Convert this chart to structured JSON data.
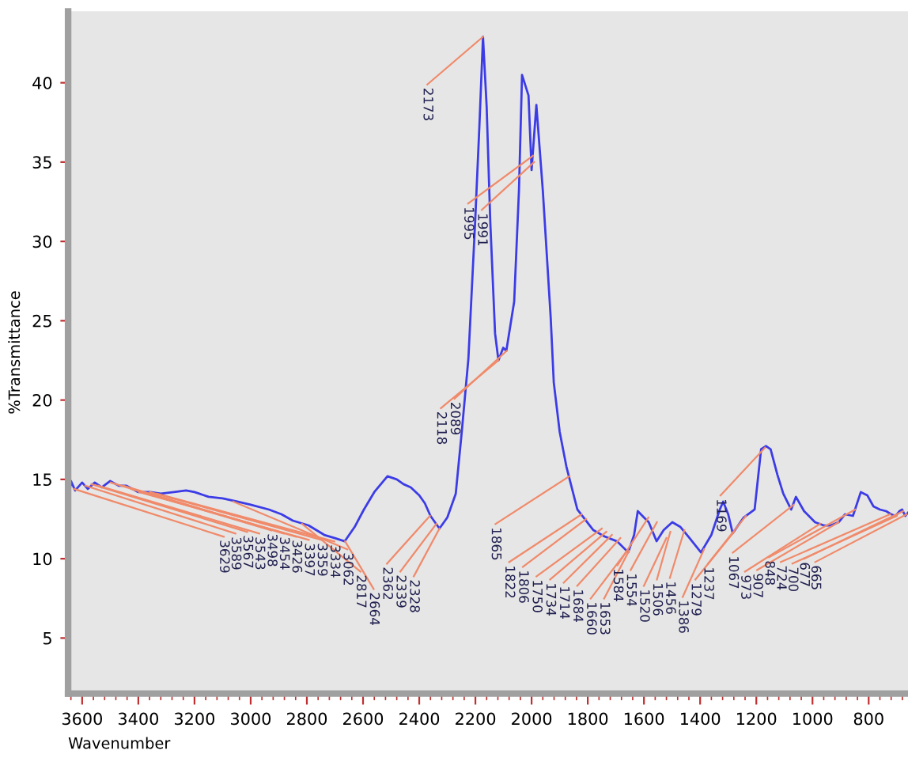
{
  "chart_data": {
    "type": "line",
    "xlabel": "Wavenumber",
    "ylabel": "%Transmittance",
    "xlim": [
      3650,
      660
    ],
    "ylim": [
      1.5,
      44.5
    ],
    "xticks": [
      3600,
      3400,
      3200,
      3000,
      2800,
      2600,
      2400,
      2200,
      2000,
      1800,
      1600,
      1400,
      1200,
      1000,
      800
    ],
    "yticks": [
      5,
      10,
      15,
      20,
      25,
      30,
      35,
      40
    ],
    "grid": false,
    "legend": false,
    "marker": "none",
    "line_style": "solid",
    "series": [
      {
        "color": "#3c3ce6",
        "x": [
          3645,
          3640,
          3625,
          3600,
          3580,
          3555,
          3530,
          3500,
          3470,
          3442,
          3400,
          3358,
          3320,
          3273,
          3230,
          3200,
          3150,
          3100,
          3048,
          3000,
          2935,
          2890,
          2850,
          2794,
          2738,
          2700,
          2665,
          2630,
          2597,
          2560,
          2513,
          2480,
          2456,
          2430,
          2400,
          2380,
          2360,
          2340,
          2328,
          2300,
          2270,
          2248,
          2225,
          2201,
          2186,
          2173,
          2160,
          2147,
          2130,
          2118,
          2101,
          2090,
          2062,
          2045,
          2034,
          2011,
          2000,
          1983,
          1960,
          1932,
          1921,
          1900,
          1876,
          1837,
          1780,
          1740,
          1696,
          1656,
          1635,
          1622,
          1600,
          1583,
          1555,
          1530,
          1499,
          1470,
          1442,
          1397,
          1360,
          1330,
          1318,
          1300,
          1284,
          1245,
          1206,
          1183,
          1165,
          1149,
          1125,
          1104,
          1076,
          1059,
          1030,
          991,
          960,
          935,
          907,
          884,
          856,
          828,
          805,
          783,
          760,
          738,
          720,
          704,
          690,
          681,
          670,
          660
        ],
        "values": [
          14.1,
          14.9,
          14.3,
          14.8,
          14.4,
          14.8,
          14.5,
          14.9,
          14.6,
          14.6,
          14.2,
          14.2,
          14.1,
          14.2,
          14.3,
          14.2,
          13.9,
          13.8,
          13.6,
          13.4,
          13.1,
          12.8,
          12.4,
          12.1,
          11.5,
          11.3,
          11.1,
          12.0,
          13.1,
          14.2,
          15.2,
          15.0,
          14.7,
          14.5,
          14.0,
          13.5,
          12.7,
          12.2,
          11.9,
          12.6,
          14.1,
          18.1,
          22.6,
          31.2,
          37.2,
          42.9,
          38.5,
          31.2,
          24.2,
          22.5,
          23.3,
          23.1,
          26.2,
          33.2,
          40.5,
          39.2,
          34.5,
          38.6,
          33.2,
          25.2,
          21.1,
          18.0,
          15.8,
          13.1,
          11.8,
          11.4,
          11.1,
          10.4,
          11.5,
          13.0,
          12.6,
          12.3,
          11.1,
          11.8,
          12.3,
          12.0,
          11.4,
          10.4,
          11.5,
          13.1,
          13.6,
          12.8,
          11.6,
          12.6,
          13.1,
          16.9,
          17.1,
          16.9,
          15.3,
          14.1,
          13.1,
          13.9,
          13.0,
          12.3,
          12.1,
          12.1,
          12.3,
          12.8,
          12.7,
          14.2,
          14.0,
          13.3,
          13.1,
          13.0,
          12.8,
          12.7,
          13.0,
          13.1,
          12.7,
          12.9
        ]
      }
    ],
    "annotations": [
      {
        "text": "3629",
        "x": 3629,
        "y": 14.4
      },
      {
        "text": "3589",
        "x": 3589,
        "y": 14.6
      },
      {
        "text": "3567",
        "x": 3567,
        "y": 14.7
      },
      {
        "text": "3543",
        "x": 3543,
        "y": 14.6
      },
      {
        "text": "3498",
        "x": 3498,
        "y": 14.8
      },
      {
        "text": "3454",
        "x": 3454,
        "y": 14.6
      },
      {
        "text": "3426",
        "x": 3426,
        "y": 14.4
      },
      {
        "text": "3397",
        "x": 3397,
        "y": 14.2
      },
      {
        "text": "3359",
        "x": 3359,
        "y": 14.2
      },
      {
        "text": "3334",
        "x": 3334,
        "y": 14.1
      },
      {
        "text": "3062",
        "x": 3062,
        "y": 13.6
      },
      {
        "text": "2817",
        "x": 2817,
        "y": 12.2
      },
      {
        "text": "2664",
        "x": 2664,
        "y": 11.1
      },
      {
        "text": "2362",
        "x": 2362,
        "y": 12.7
      },
      {
        "text": "2339",
        "x": 2339,
        "y": 12.2
      },
      {
        "text": "2328",
        "x": 2328,
        "y": 11.9
      },
      {
        "text": "2173",
        "x": 2173,
        "y": 42.9
      },
      {
        "text": "2118",
        "x": 2118,
        "y": 22.5
      },
      {
        "text": "2089",
        "x": 2089,
        "y": 23.1
      },
      {
        "text": "1995",
        "x": 1995,
        "y": 35.4
      },
      {
        "text": "1991",
        "x": 1991,
        "y": 35.0
      },
      {
        "text": "1865",
        "x": 1865,
        "y": 15.2
      },
      {
        "text": "1822",
        "x": 1822,
        "y": 12.8
      },
      {
        "text": "1806",
        "x": 1806,
        "y": 12.5
      },
      {
        "text": "1750",
        "x": 1750,
        "y": 11.9
      },
      {
        "text": "1734",
        "x": 1734,
        "y": 11.7
      },
      {
        "text": "1714",
        "x": 1714,
        "y": 11.5
      },
      {
        "text": "1684",
        "x": 1684,
        "y": 11.3
      },
      {
        "text": "1660",
        "x": 1660,
        "y": 10.5
      },
      {
        "text": "1653",
        "x": 1653,
        "y": 10.5
      },
      {
        "text": "1584",
        "x": 1584,
        "y": 12.6
      },
      {
        "text": "1554",
        "x": 1554,
        "y": 12.3
      },
      {
        "text": "1520",
        "x": 1520,
        "y": 11.3
      },
      {
        "text": "1506",
        "x": 1506,
        "y": 11.7
      },
      {
        "text": "1456",
        "x": 1456,
        "y": 11.8
      },
      {
        "text": "1386",
        "x": 1386,
        "y": 10.6
      },
      {
        "text": "1279",
        "x": 1279,
        "y": 11.7
      },
      {
        "text": "1237",
        "x": 1237,
        "y": 12.7
      },
      {
        "text": "1169",
        "x": 1169,
        "y": 17.0
      },
      {
        "text": "1067",
        "x": 1067,
        "y": 13.4
      },
      {
        "text": "973",
        "x": 973,
        "y": 12.2
      },
      {
        "text": "907",
        "x": 907,
        "y": 12.3
      },
      {
        "text": "848",
        "x": 848,
        "y": 13.1
      },
      {
        "text": "724",
        "x": 724,
        "y": 12.8
      },
      {
        "text": "700",
        "x": 700,
        "y": 12.7
      },
      {
        "text": "677",
        "x": 677,
        "y": 13.0
      },
      {
        "text": "665",
        "x": 665,
        "y": 12.8
      }
    ]
  }
}
